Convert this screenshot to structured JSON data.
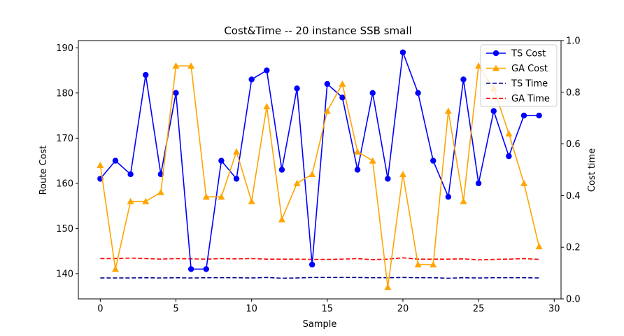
{
  "chart_data": {
    "type": "line",
    "title": "Cost&Time -- 20 instance SSB small",
    "xlabel": "Sample",
    "ylabel": "Route Cost",
    "y2label": "Cost time",
    "xlim": [
      -1.45,
      30.45
    ],
    "ylim": [
      134.4,
      191.6
    ],
    "y2lim": [
      0.0,
      1.0
    ],
    "xticks": [
      0,
      5,
      10,
      15,
      20,
      25,
      30
    ],
    "yticks": [
      140,
      150,
      160,
      170,
      180,
      190
    ],
    "y2ticks": [
      0.0,
      0.2,
      0.4,
      0.6,
      0.8,
      1.0
    ],
    "y2ticklabels": [
      "0.0",
      "0.2",
      "0.4",
      "0.6",
      "0.8",
      "1.0"
    ],
    "x": [
      0,
      1,
      2,
      3,
      4,
      5,
      6,
      7,
      8,
      9,
      10,
      11,
      12,
      13,
      14,
      15,
      16,
      17,
      18,
      19,
      20,
      21,
      22,
      23,
      24,
      25,
      26,
      27,
      28,
      29
    ],
    "series": [
      {
        "name": "TS Cost",
        "axis": "left",
        "color": "#0000ff",
        "style": "solid",
        "marker": "circle",
        "values": [
          161,
          165,
          162,
          184,
          162,
          180,
          141,
          141,
          165,
          161,
          183,
          185,
          163,
          181,
          142,
          182,
          179,
          163,
          180,
          161,
          189,
          180,
          165,
          157,
          183,
          160,
          176,
          166,
          175,
          175
        ]
      },
      {
        "name": "GA Cost",
        "axis": "left",
        "color": "#ffa500",
        "style": "solid",
        "marker": "triangle",
        "values": [
          164,
          141,
          156,
          156,
          158,
          186,
          186,
          157,
          157,
          167,
          156,
          177,
          152,
          160,
          162,
          176,
          182,
          167,
          165,
          137,
          162,
          142,
          142,
          176,
          156,
          186,
          181,
          171,
          160,
          146
        ]
      },
      {
        "name": "TS Time",
        "axis": "right",
        "color": "#00008b",
        "style": "dashed",
        "marker": "none",
        "values": [
          0.081,
          0.081,
          0.081,
          0.082,
          0.081,
          0.082,
          0.081,
          0.082,
          0.082,
          0.082,
          0.081,
          0.083,
          0.08,
          0.081,
          0.083,
          0.083,
          0.083,
          0.083,
          0.082,
          0.082,
          0.083,
          0.082,
          0.082,
          0.08,
          0.082,
          0.081,
          0.082,
          0.082,
          0.082,
          0.081
        ]
      },
      {
        "name": "GA Time",
        "axis": "right",
        "color": "#ff0000",
        "style": "dashed",
        "marker": "none",
        "values": [
          0.156,
          0.156,
          0.158,
          0.156,
          0.154,
          0.156,
          0.155,
          0.154,
          0.156,
          0.155,
          0.156,
          0.154,
          0.154,
          0.154,
          0.153,
          0.153,
          0.154,
          0.156,
          0.152,
          0.154,
          0.159,
          0.154,
          0.154,
          0.154,
          0.155,
          0.151,
          0.153,
          0.154,
          0.156,
          0.153
        ]
      }
    ],
    "legend_placement": "top-right",
    "grid": false
  }
}
